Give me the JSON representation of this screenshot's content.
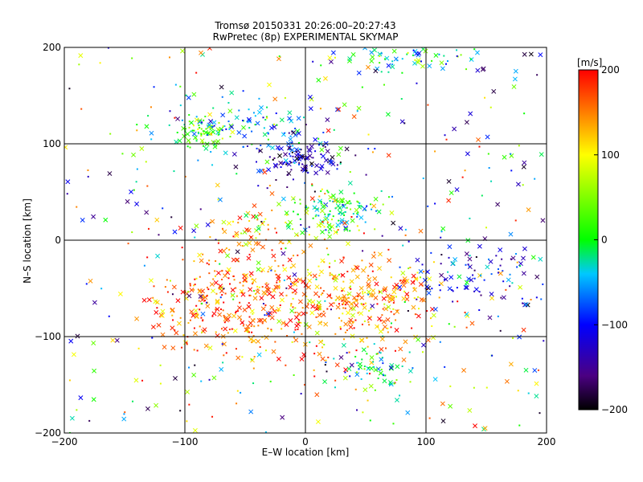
{
  "chart_data": {
    "type": "scatter",
    "title_line1": "Tromsø 20150331 20:26:00–20:27:43",
    "title_line2": "RwPretec (8p) EXPERIMENTAL SKYMAP",
    "xlabel": "E–W location [km]",
    "ylabel": "N–S location [km]",
    "xlim": [
      -200,
      200
    ],
    "ylim": [
      -200,
      200
    ],
    "xticks": [
      -200,
      -100,
      0,
      100,
      200
    ],
    "yticks": [
      -200,
      -100,
      0,
      100,
      200
    ],
    "xtick_labels": [
      "−200",
      "−100",
      "0",
      "100",
      "200"
    ],
    "ytick_labels": [
      "−200",
      "−100",
      "0",
      "100",
      "200"
    ],
    "grid": true,
    "markers": [
      "x",
      "dot"
    ],
    "clusters": [
      {
        "name": "north-upper",
        "cx": 80,
        "cy": 190,
        "sx": 25,
        "sy": 8,
        "n": 60,
        "v": -30
      },
      {
        "name": "northwest-cyan",
        "cx": -85,
        "cy": 112,
        "sx": 10,
        "sy": 8,
        "n": 80,
        "v": 10
      },
      {
        "name": "north-blue",
        "cx": -5,
        "cy": 85,
        "sx": 18,
        "sy": 8,
        "n": 110,
        "v": -140
      },
      {
        "name": "north-arc",
        "cx": -40,
        "cy": 118,
        "sx": 30,
        "sy": 14,
        "n": 90,
        "v": -50
      },
      {
        "name": "center-cyan",
        "cx": 25,
        "cy": 30,
        "sx": 20,
        "sy": 12,
        "n": 140,
        "v": 0
      },
      {
        "name": "center-west",
        "cx": -40,
        "cy": 10,
        "sx": 22,
        "sy": 12,
        "n": 60,
        "v": 120
      },
      {
        "name": "southwest-red",
        "cx": -60,
        "cy": -65,
        "sx": 35,
        "sy": 28,
        "n": 320,
        "v": 160
      },
      {
        "name": "southeast-red",
        "cx": 40,
        "cy": -60,
        "sx": 40,
        "sy": 30,
        "n": 360,
        "v": 150
      },
      {
        "name": "south-cyan",
        "cx": 60,
        "cy": -135,
        "sx": 15,
        "sy": 12,
        "n": 60,
        "v": -10
      },
      {
        "name": "east-blue",
        "cx": 140,
        "cy": -40,
        "sx": 30,
        "sy": 20,
        "n": 90,
        "v": -110
      },
      {
        "name": "background",
        "cx": 0,
        "cy": 0,
        "sx": 400,
        "sy": 400,
        "n": 420,
        "v": 0
      }
    ],
    "colorbar": {
      "label": "[m/s]",
      "range": [
        -200,
        200
      ],
      "ticks": [
        -200,
        -100,
        0,
        100,
        200
      ],
      "tick_labels": [
        "−200",
        "−100",
        "0",
        "100",
        "200"
      ],
      "colormap": "rainbow (black-purple-blue-cyan-green-yellow-red)"
    }
  }
}
